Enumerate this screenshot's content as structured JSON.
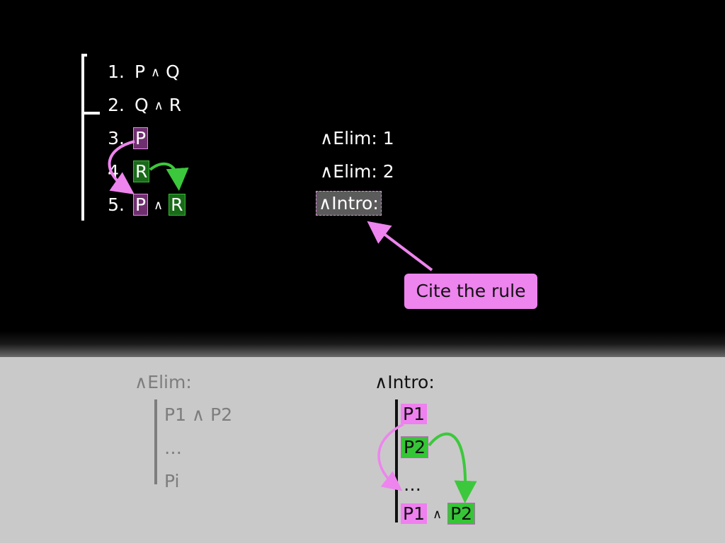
{
  "proof": {
    "lines": [
      {
        "num": "1.",
        "left": "P",
        "op": "∧",
        "right": "Q"
      },
      {
        "num": "2.",
        "left": "Q",
        "op": "∧",
        "right": "R"
      },
      {
        "num": "3.",
        "formula": "P",
        "rule": "∧Elim: 1"
      },
      {
        "num": "4.",
        "formula": "R",
        "rule": "∧Elim: 2"
      },
      {
        "num": "5.",
        "left": "P",
        "op": "∧",
        "right": "R",
        "rule": "∧Intro:"
      }
    ]
  },
  "callout": {
    "label": "Cite the rule"
  },
  "elim_rule": {
    "title": "∧Elim:",
    "lines": [
      "P1 ∧ P2",
      "…",
      "Pi"
    ]
  },
  "intro_rule": {
    "title": "∧Intro:",
    "p1": "P1",
    "p2": "P2",
    "ellipsis": "…",
    "concl_left": "P1",
    "concl_op": "∧",
    "concl_right": "P2"
  },
  "colors": {
    "background_top": "#000000",
    "background_bottom": "#c9c9c9",
    "pink": "#ee84ee",
    "purple_highlight": "#6f2f6f",
    "green_highlight": "#196b19",
    "green_arrow": "#3cc83c"
  }
}
